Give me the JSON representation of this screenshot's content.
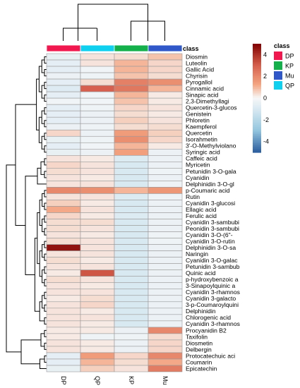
{
  "chart_data": {
    "type": "heatmap",
    "columns": [
      "DP",
      "QP",
      "KP",
      "Mu"
    ],
    "rows": [
      "Diosmin",
      "Luteolin",
      "Gallic Acid",
      "Chyrisin",
      "Pyrogallol",
      "Cinnamic acid",
      "Sinapic acid",
      "2,3-Dimethyllagi",
      "Quercetin-3-glucos",
      "Genistein",
      "Phloretin",
      "Kaempferol",
      "Quercetin",
      "Isorahmetin",
      "3'-O-Methylviolano",
      "Syringic acid",
      "Caffeic acid",
      "Myricetin",
      "Petunidin 3-O-gala",
      "Cyanidin",
      "Delphinidin 3-O-gl",
      "p-Coumaric acid",
      "Rutin",
      "Cyanidin 3-glucosi",
      "Ellagic acid",
      "Ferulic acid",
      "Cyanidin 3-sambubi",
      "Peonidin 3-sambubi",
      "Cyanidin 3-O-(6\"-",
      "Cyanidin 3-O-rutin",
      "Delphinidin 3-O-sa",
      "Naringin",
      "Cyanidin 3-O-galac",
      "Petunidin 3-sambub",
      "Quinic acid",
      "p-hydroxybenzoic a",
      "3-Sinapoylquinic a",
      "Cyanidin 3-rhamnos",
      "Cyanidin 3-galacto",
      "3-p-Coumaroylquini",
      "Delphinidin",
      "Chlorogenic acid",
      "Cyanidin 3-rhamnos",
      "Procyanidin B2",
      "Taxifolin",
      "Diosmetin",
      "Delbergin",
      "Protocatechuic aci",
      "Coumarin",
      "Epicatechin"
    ],
    "values": [
      [
        -0.5,
        0.3,
        0.4,
        0.8
      ],
      [
        -0.6,
        0.3,
        1.0,
        0.5
      ],
      [
        -0.6,
        -0.2,
        1.0,
        0.5
      ],
      [
        -0.4,
        -0.3,
        0.8,
        0.4
      ],
      [
        -0.6,
        0.4,
        2.2,
        1.8
      ],
      [
        -0.8,
        3.0,
        2.4,
        1.0
      ],
      [
        -0.6,
        -0.2,
        1.0,
        0.2
      ],
      [
        -0.2,
        -0.2,
        0.8,
        0.2
      ],
      [
        -0.6,
        -0.3,
        0.5,
        0.3
      ],
      [
        -0.6,
        -0.4,
        0.4,
        0.2
      ],
      [
        -0.6,
        -0.4,
        0.6,
        0.3
      ],
      [
        -0.4,
        -0.3,
        0.4,
        0.4
      ],
      [
        0.5,
        -0.4,
        1.5,
        0.6
      ],
      [
        -0.5,
        -0.3,
        1.8,
        0.5
      ],
      [
        -0.6,
        -0.2,
        1.0,
        0.2
      ],
      [
        -0.5,
        -0.4,
        1.4,
        -0.4
      ],
      [
        0.3,
        0.2,
        -0.9,
        -0.4
      ],
      [
        0.5,
        0.3,
        -1.0,
        -0.4
      ],
      [
        0.4,
        0.3,
        -1.0,
        -0.3
      ],
      [
        0.3,
        0.2,
        -1.0,
        -0.4
      ],
      [
        0.3,
        0.3,
        -1.0,
        -0.3
      ],
      [
        2.0,
        1.8,
        1.0,
        1.6
      ],
      [
        0.3,
        0.3,
        -0.9,
        -0.3
      ],
      [
        0.6,
        0.2,
        -1.0,
        -0.4
      ],
      [
        1.2,
        0.3,
        -1.0,
        -0.4
      ],
      [
        0.5,
        0.2,
        -0.9,
        -0.4
      ],
      [
        0.4,
        0.4,
        -1.0,
        -0.4
      ],
      [
        0.4,
        0.3,
        -1.0,
        -0.4
      ],
      [
        0.3,
        0.2,
        -1.0,
        -0.3
      ],
      [
        0.4,
        0.3,
        -1.0,
        -0.3
      ],
      [
        4.6,
        0.3,
        -1.0,
        -0.4
      ],
      [
        0.3,
        0.3,
        -1.0,
        -0.4
      ],
      [
        0.4,
        0.2,
        -1.0,
        -0.4
      ],
      [
        0.3,
        0.3,
        -1.0,
        -0.4
      ],
      [
        0.2,
        3.2,
        -1.0,
        -0.4
      ],
      [
        0.4,
        0.3,
        -1.0,
        -0.4
      ],
      [
        0.3,
        0.2,
        -1.0,
        -0.4
      ],
      [
        0.3,
        0.3,
        -1.0,
        -0.4
      ],
      [
        0.2,
        0.4,
        -1.0,
        -0.4
      ],
      [
        0.3,
        0.5,
        -1.0,
        -0.4
      ],
      [
        0.3,
        0.2,
        -1.0,
        -0.4
      ],
      [
        0.3,
        0.3,
        -1.0,
        -0.4
      ],
      [
        0.3,
        0.2,
        -1.0,
        -0.4
      ],
      [
        0.2,
        0.2,
        -0.4,
        2.0
      ],
      [
        0.2,
        -0.3,
        -0.3,
        0.4
      ],
      [
        0.3,
        0.2,
        -0.4,
        0.5
      ],
      [
        0.3,
        0.2,
        -0.4,
        0.5
      ],
      [
        -0.6,
        1.5,
        0.5,
        2.0
      ],
      [
        -0.6,
        1.0,
        0.4,
        1.2
      ],
      [
        -0.5,
        0.6,
        0.3,
        2.3
      ]
    ],
    "color_scale": {
      "min": -5,
      "max": 5,
      "low": "#2b5d9e",
      "mid": "#f7f7f7",
      "high": "#800000",
      "ticks": [
        4,
        2,
        0,
        -2,
        -4
      ]
    },
    "class_bar": {
      "label": "class",
      "legend_title": "class"
    },
    "class_legend": [
      {
        "name": "DP",
        "color": "#f0184e"
      },
      {
        "name": "KP",
        "color": "#13b04c"
      },
      {
        "name": "Mu",
        "color": "#3058c8"
      },
      {
        "name": "QP",
        "color": "#10d0f0"
      }
    ]
  }
}
